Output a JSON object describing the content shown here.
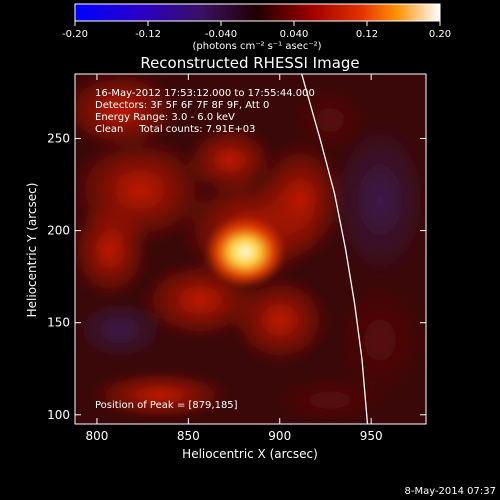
{
  "colorbar": {
    "ticks": [
      "-0.20",
      "-0.12",
      "-0.040",
      "0.040",
      "0.12",
      "0.20"
    ],
    "min": -0.2,
    "max": 0.2,
    "unit_label": "(photons cm⁻² s⁻¹ asec⁻²)"
  },
  "chart_data": {
    "type": "heatmap",
    "title": "Reconstructed RHESSI Image",
    "xlabel": "Heliocentric X (arcsec)",
    "ylabel": "Heliocentric Y (arcsec)",
    "xlim": [
      788,
      980
    ],
    "ylim": [
      95,
      285
    ],
    "xticks": [
      "800",
      "850",
      "900",
      "950"
    ],
    "yticks": [
      "100",
      "150",
      "200",
      "250"
    ],
    "annotation_lines": [
      "16-May-2012 17:53:12.000 to 17:55:44.000",
      "Detectors: 3F 5F 6F 7F 8F 9F, Att 0",
      "Energy Range: 3.0 - 6.0 keV",
      "Clean     Total counts: 7.91E+03"
    ],
    "peak_label": "Position of Peak = [879,185]",
    "peak_position": [
      879,
      185
    ],
    "limb_curve": [
      [
        912,
        285
      ],
      [
        922,
        250
      ],
      [
        930,
        220
      ],
      [
        936,
        190
      ],
      [
        941,
        160
      ],
      [
        945,
        130
      ],
      [
        948,
        95
      ]
    ]
  },
  "footer": {
    "date": "8-May-2014 07:37"
  }
}
